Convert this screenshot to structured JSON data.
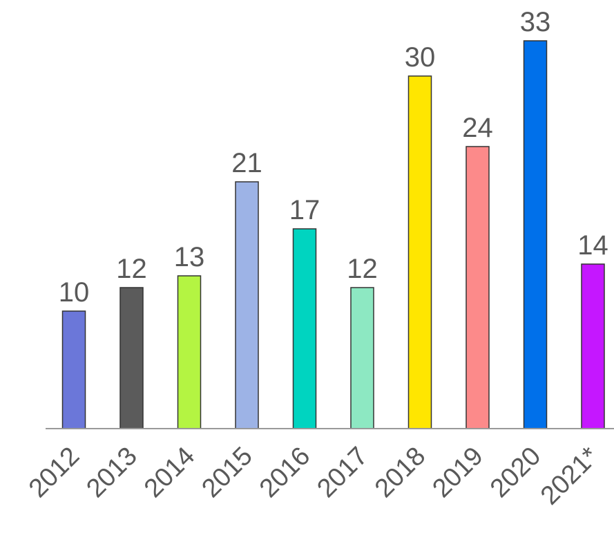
{
  "chart_data": {
    "type": "bar",
    "title": "",
    "xlabel": "",
    "ylabel": "",
    "categories": [
      "2012",
      "2013",
      "2014",
      "2015",
      "2016",
      "2017",
      "2018",
      "2019",
      "2020",
      "2021*"
    ],
    "values": [
      10,
      12,
      13,
      21,
      17,
      12,
      30,
      24,
      33,
      14
    ],
    "data_labels": [
      "10",
      "12",
      "13",
      "21",
      "17",
      "12",
      "30",
      "24",
      "33",
      "14"
    ],
    "bar_colors": [
      "#6b77d9",
      "#5b5b5b",
      "#b4f442",
      "#9db3e6",
      "#00d4c0",
      "#8de8c2",
      "#ffe600",
      "#fc8a8a",
      "#0070ea",
      "#c517ff"
    ],
    "bar_border_color": "#333333",
    "axis_color": "#999999",
    "label_color": "#595959",
    "ylim": [
      0,
      33
    ],
    "grid": false,
    "legend": "none"
  }
}
